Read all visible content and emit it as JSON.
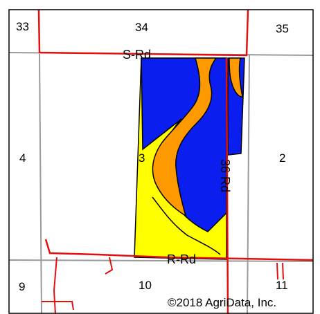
{
  "map": {
    "sections": {
      "s33": "33",
      "s34": "34",
      "s35": "35",
      "s4": "4",
      "s3": "3",
      "s2": "2",
      "s9": "9",
      "s10": "10",
      "s11": "11"
    },
    "roads": {
      "s_rd": "S-Rd",
      "r_rd": "R-Rd",
      "rd_36": "36 Rd"
    },
    "copyright": "©2018 AgriData, Inc.",
    "colors": {
      "zone_blue": "#0a1ef0",
      "zone_orange": "#ff9900",
      "zone_yellow": "#ffff00",
      "road_red": "#e01010",
      "section_line_gray": "#9a9a9a",
      "boundary_black": "#000000"
    }
  }
}
